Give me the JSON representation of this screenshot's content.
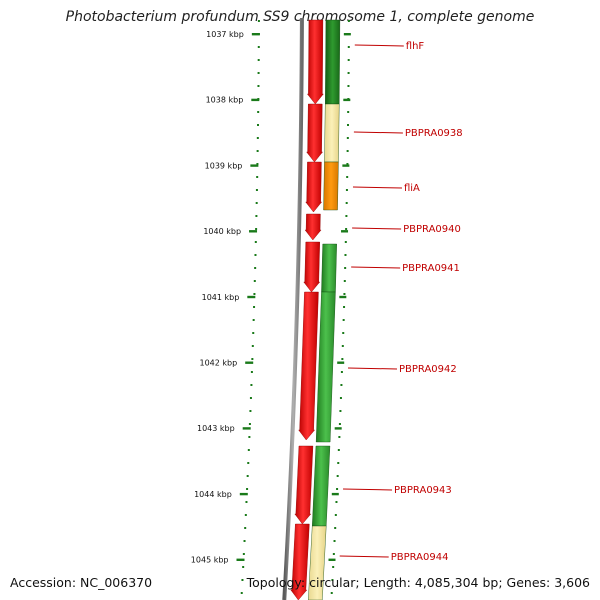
{
  "title": "Photobacterium profundum SS9 chromosome 1, complete genome",
  "accession": "Accession: NC_006370",
  "summary": "Topology: circular; Length: 4,085,304 bp; Genes: 3,606",
  "colors": {
    "backbone": "#808080",
    "forward_strand": "#ee0000",
    "reverse_green": "#2f9a2f",
    "reverse_dark_green": "#1f7a1f",
    "reverse_pale": "#f4e6a0",
    "reverse_orange": "#f08a00",
    "tick": "#1a7a1a",
    "label": "#c00000"
  },
  "ticks": [
    "1037 kbp",
    "1038 kbp",
    "1039 kbp",
    "1040 kbp",
    "1041 kbp",
    "1042 kbp",
    "1043 kbp",
    "1044 kbp",
    "1045 kbp"
  ],
  "genes": [
    {
      "name": "flhF"
    },
    {
      "name": "PBPRA0938"
    },
    {
      "name": "fliA"
    },
    {
      "name": "PBPRA0940"
    },
    {
      "name": "PBPRA0941"
    },
    {
      "name": "PBPRA0942"
    },
    {
      "name": "PBPRA0943"
    },
    {
      "name": "PBPRA0944"
    }
  ]
}
